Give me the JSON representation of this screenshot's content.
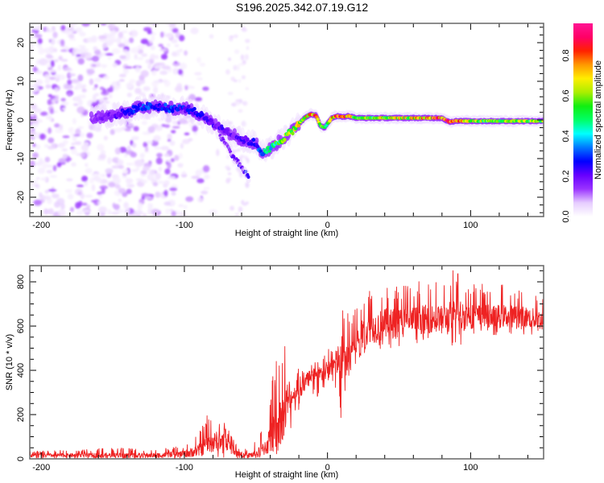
{
  "figure": {
    "title": "S196.2025.342.07.19.G12"
  },
  "chart_data": [
    {
      "type": "heatmap",
      "name": "spectrogram",
      "title": "S196.2025.342.07.19.G12",
      "xlabel": "Height of straight line (km)",
      "ylabel": "Frequency (Hz)",
      "xlim": [
        -208,
        151
      ],
      "ylim": [
        -25,
        25
      ],
      "xticks": [
        -200,
        -100,
        0,
        100
      ],
      "xtick_labels": [
        "-200",
        "-100",
        "0",
        "100"
      ],
      "yticks": [
        -20,
        -10,
        0,
        10,
        20
      ],
      "ytick_labels": [
        "-20",
        "-10",
        "0",
        "10",
        "20"
      ],
      "x_minor_step": 20,
      "y_minor_step": 2,
      "grid": false,
      "colormap": "rainbow (white-violet-blue-cyan-green-yellow-red-magenta)",
      "colorbar": {
        "label": "Normalized spectral amplitude",
        "range": [
          0.0,
          0.96
        ],
        "ticks": [
          0.0,
          0.2,
          0.4,
          0.6,
          0.8
        ],
        "tick_labels": [
          "0.0",
          "0.2",
          "0.4",
          "0.6",
          "0.8"
        ],
        "placement": "right",
        "colors": [
          "#ffffff",
          "#e6ccff",
          "#9a33ff",
          "#6600ff",
          "#0000ff",
          "#0077ff",
          "#00ffff",
          "#00ff66",
          "#11ee11",
          "#aaee00",
          "#ffee00",
          "#ff9900",
          "#ff2200",
          "#ff0066",
          "#ff1493"
        ]
      },
      "ridge": {
        "description": "dominant Doppler frequency track vs height",
        "x": [
          -165,
          -150,
          -140,
          -130,
          -120,
          -110,
          -100,
          -95,
          -90,
          -85,
          -80,
          -75,
          -70,
          -65,
          -60,
          -55,
          -50,
          -47,
          -44,
          -40,
          -35,
          -30,
          -25,
          -20,
          -16,
          -12,
          -8,
          -5,
          -2,
          0,
          3,
          6,
          10,
          15,
          20,
          30,
          40,
          60,
          80,
          85,
          90,
          100,
          120,
          140,
          151
        ],
        "y": [
          0.5,
          1.2,
          2.0,
          3.5,
          3.5,
          3.0,
          3.0,
          2.5,
          1.5,
          0.5,
          -1.0,
          -2.0,
          -3.0,
          -4.0,
          -5.0,
          -5.5,
          -6.0,
          -8.0,
          -8.5,
          -7.5,
          -6.0,
          -4.5,
          -3.0,
          -1.0,
          0.5,
          1.5,
          1.2,
          -1.5,
          -2.0,
          -1.0,
          0.5,
          1.0,
          0.8,
          1.0,
          0.5,
          0.5,
          0.5,
          0.5,
          0.5,
          -0.5,
          -0.3,
          -0.3,
          -0.3,
          -0.3,
          -0.3
        ],
        "amplitude": [
          0.15,
          0.2,
          0.25,
          0.3,
          0.3,
          0.3,
          0.28,
          0.25,
          0.25,
          0.22,
          0.22,
          0.22,
          0.2,
          0.2,
          0.22,
          0.25,
          0.28,
          0.35,
          0.45,
          0.5,
          0.55,
          0.6,
          0.62,
          0.65,
          0.7,
          0.75,
          0.8,
          0.6,
          0.55,
          0.6,
          0.7,
          0.85,
          0.9,
          0.75,
          0.6,
          0.6,
          0.65,
          0.7,
          0.9,
          0.9,
          0.85,
          0.65,
          0.6,
          0.6,
          0.6
        ]
      },
      "branch": {
        "description": "secondary descending branch",
        "x": [
          -75,
          -70,
          -65,
          -60,
          -55
        ],
        "y": [
          -4.0,
          -7.0,
          -10.0,
          -12.0,
          -15.0
        ],
        "amplitude": [
          0.18,
          0.2,
          0.2,
          0.22,
          0.3
        ]
      },
      "noise_region_x": [
        -208,
        -75
      ],
      "isolated_noise_column_x": [
        -70,
        -55
      ]
    },
    {
      "type": "line",
      "name": "snr",
      "xlabel": "Height of straight line (km)",
      "ylabel": "SNR (10 * v/v)",
      "xlim": [
        -208,
        151
      ],
      "ylim": [
        0,
        873
      ],
      "xticks": [
        -200,
        -100,
        0,
        100
      ],
      "xtick_labels": [
        "-200",
        "-100",
        "0",
        "100"
      ],
      "yticks": [
        0,
        200,
        400,
        600,
        800
      ],
      "ytick_labels": [
        "0",
        "200",
        "400",
        "600",
        "800"
      ],
      "x_minor_step": 20,
      "y_minor_step": 50,
      "grid": false,
      "series": [
        {
          "name": "SNR",
          "color": "#ee2222",
          "envelope_x": [
            -208,
            -180,
            -150,
            -120,
            -110,
            -100,
            -90,
            -85,
            -80,
            -75,
            -70,
            -65,
            -60,
            -55,
            -50,
            -45,
            -40,
            -35,
            -30,
            -27,
            -25,
            -20,
            -15,
            -10,
            -5,
            0,
            5,
            10,
            12,
            15,
            20,
            25,
            30,
            40,
            50,
            60,
            70,
            80,
            90,
            100,
            110,
            120,
            130,
            140,
            151
          ],
          "envelope_mean": [
            15,
            15,
            15,
            15,
            18,
            22,
            35,
            55,
            70,
            80,
            60,
            35,
            15,
            15,
            20,
            40,
            80,
            130,
            200,
            260,
            280,
            300,
            340,
            370,
            380,
            390,
            430,
            440,
            430,
            470,
            520,
            560,
            580,
            600,
            610,
            620,
            625,
            630,
            635,
            640,
            640,
            640,
            640,
            635,
            620
          ],
          "envelope_max": [
            35,
            40,
            50,
            45,
            50,
            60,
            120,
            200,
            210,
            190,
            150,
            80,
            40,
            50,
            80,
            140,
            300,
            520,
            520,
            510,
            300,
            420,
            380,
            450,
            430,
            500,
            500,
            680,
            720,
            640,
            680,
            760,
            780,
            800,
            790,
            800,
            810,
            810,
            870,
            800,
            790,
            790,
            780,
            770,
            750
          ],
          "envelope_min": [
            0,
            0,
            0,
            0,
            0,
            0,
            0,
            5,
            10,
            0,
            0,
            0,
            0,
            0,
            0,
            10,
            0,
            20,
            60,
            40,
            150,
            220,
            260,
            280,
            270,
            290,
            320,
            160,
            300,
            380,
            420,
            460,
            480,
            480,
            500,
            520,
            520,
            560,
            490,
            560,
            560,
            560,
            560,
            560,
            560
          ]
        }
      ]
    }
  ]
}
